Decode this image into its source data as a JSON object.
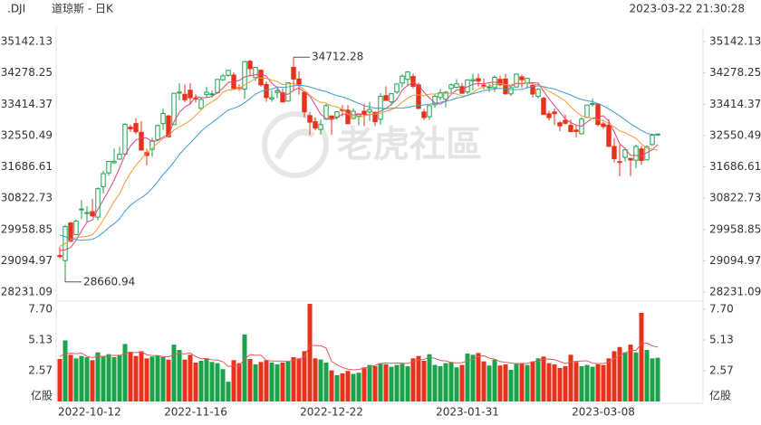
{
  "header": {
    "symbol": ".DJI",
    "name": "道琼斯 - 日K",
    "timestamp": "2023-03-22 21:30:28"
  },
  "watermark": "老虎社區",
  "chart_data": {
    "type": "candlestick",
    "up_color": "#1aa34a",
    "down_color": "#e8311a",
    "categories": [
      "2022-10-12",
      null,
      null,
      null,
      null,
      null,
      null,
      null,
      null,
      null,
      null,
      null,
      null,
      null,
      null,
      null,
      null,
      null,
      null,
      null,
      null,
      null,
      null,
      null,
      null,
      "2022-11-16",
      null,
      null,
      null,
      null,
      null,
      null,
      null,
      null,
      null,
      null,
      null,
      null,
      null,
      null,
      null,
      null,
      null,
      null,
      null,
      null,
      null,
      null,
      null,
      null,
      "2022-12-22",
      null,
      null,
      null,
      null,
      null,
      null,
      null,
      null,
      null,
      null,
      null,
      null,
      null,
      null,
      null,
      null,
      null,
      null,
      null,
      null,
      null,
      null,
      null,
      null,
      "2023-01-31",
      null,
      null,
      null,
      null,
      null,
      null,
      null,
      null,
      null,
      null,
      null,
      null,
      null,
      null,
      null,
      null,
      null,
      null,
      null,
      null,
      null,
      null,
      null,
      null,
      "2023-03-08",
      null,
      null,
      null,
      null,
      null,
      null,
      null,
      null,
      null,
      null
    ],
    "open": [
      29239,
      29100,
      30138,
      29818,
      30500,
      30400,
      30450,
      30300,
      31140,
      31520,
      31800,
      31900,
      32040,
      32780,
      32880,
      32640,
      32080,
      32170,
      32440,
      32880,
      33090,
      32850,
      33720,
      33690,
      33800,
      33580,
      33300,
      33680,
      33690,
      33730,
      34090,
      34210,
      34220,
      33870,
      33830,
      34600,
      34150,
      34350,
      33960,
      33560,
      33740,
      33730,
      33500,
      34430,
      34110,
      33740,
      33100,
      32930,
      32720,
      33000,
      33090,
      33060,
      33260,
      33250,
      33020,
      33090,
      33220,
      33200,
      33190,
      33000,
      33650,
      33480,
      33750,
      34000,
      34100,
      34180,
      33950,
      33200,
      33070,
      33400,
      33600,
      33550,
      33850,
      33880,
      33900,
      33750,
      34060,
      34120,
      33940,
      33880,
      33870,
      34100,
      34110,
      33700,
      33890,
      34170,
      33990,
      33930,
      33630,
      33580,
      33150,
      33200,
      32900,
      32970,
      32830,
      32700,
      32600,
      33050,
      33420,
      33420,
      32870,
      32840,
      32250,
      31830,
      31950,
      31920,
      31870,
      32180,
      31880,
      32300,
      32570
    ],
    "high": [
      29472,
      30090,
      30169,
      30235,
      30769,
      30600,
      30800,
      31120,
      31580,
      31850,
      32190,
      32240,
      32890,
      32850,
      33030,
      32950,
      32180,
      32490,
      32850,
      33290,
      33120,
      33730,
      33990,
      33960,
      33990,
      33690,
      33600,
      33900,
      33800,
      34110,
      34250,
      34360,
      34290,
      33960,
      34590,
      34640,
      34430,
      34380,
      34040,
      33790,
      33850,
      33850,
      34010,
      34712.28,
      34320,
      33770,
      33200,
      33050,
      32990,
      33420,
      33110,
      33230,
      33390,
      33390,
      33300,
      33160,
      33430,
      33480,
      33210,
      33720,
      33910,
      33710,
      33980,
      34240,
      34330,
      34260,
      34010,
      33290,
      33380,
      33700,
      33830,
      33780,
      33990,
      34110,
      34000,
      34100,
      34260,
      34260,
      34120,
      33980,
      34210,
      34200,
      34250,
      33910,
      34260,
      34230,
      34140,
      34010,
      33850,
      33620,
      33230,
      33300,
      32950,
      33120,
      32990,
      32850,
      33050,
      33400,
      33570,
      33430,
      32930,
      33000,
      32480,
      32300,
      32220,
      31920,
      32300,
      32270,
      32280,
      32600,
      32600
    ],
    "low": [
      29162,
      28660.94,
      29603,
      29818,
      30242,
      30175,
      30300,
      30207,
      30950,
      31440,
      31760,
      31880,
      31980,
      32650,
      32590,
      32140,
      31730,
      31960,
      32400,
      32700,
      32490,
      32850,
      33520,
      33470,
      33400,
      33460,
      33250,
      33590,
      33600,
      33700,
      34060,
      34180,
      33820,
      33780,
      33560,
      34190,
      34050,
      33900,
      33480,
      33480,
      33580,
      33470,
      33490,
      33800,
      33680,
      33050,
      32570,
      32690,
      32580,
      32990,
      32570,
      32990,
      33080,
      32870,
      33000,
      32830,
      32810,
      32950,
      32810,
      32850,
      33510,
      33370,
      33700,
      33880,
      33910,
      33850,
      33280,
      32980,
      32980,
      33320,
      33520,
      33330,
      33710,
      33850,
      33700,
      33690,
      33800,
      33900,
      33820,
      33750,
      33750,
      33910,
      33680,
      33640,
      33880,
      33870,
      33850,
      33600,
      33570,
      33120,
      32970,
      32850,
      32670,
      32850,
      32650,
      32500,
      32580,
      33040,
      33350,
      32800,
      32730,
      32230,
      31810,
      31430,
      31830,
      31430,
      31650,
      31740,
      31860,
      32280,
      32540
    ],
    "close": [
      29210,
      30038,
      29635,
      30186,
      30523,
      30424,
      30333,
      31082,
      31499,
      31837,
      31839,
      32033,
      32861,
      32733,
      32653,
      32148,
      32001,
      32403,
      32827,
      33160,
      32514,
      33716,
      33748,
      33537,
      33593,
      33554,
      33547,
      33746,
      33701,
      34098,
      34195,
      34347,
      33850,
      33853,
      34590,
      34395,
      34430,
      33947,
      33597,
      33598,
      33781,
      33477,
      34005,
      34108,
      33966,
      33203,
      32920,
      32758,
      32850,
      33377,
      33027,
      33204,
      33241,
      32876,
      33221,
      33147,
      33136,
      33270,
      32930,
      33631,
      33518,
      33704,
      33973,
      34190,
      34303,
      33910,
      33297,
      33045,
      33376,
      33630,
      33734,
      33744,
      33949,
      33978,
      33717,
      34086,
      34093,
      34054,
      33926,
      33891,
      34156,
      33949,
      33699,
      33869,
      34246,
      34089,
      34128,
      33697,
      33827,
      33130,
      33045,
      33154,
      32817,
      32889,
      32657,
      32662,
      33004,
      33391,
      33432,
      32856,
      32798,
      32254,
      31910,
      31820,
      32155,
      31875,
      32247,
      31862,
      32245,
      32561,
      32590
    ],
    "ma_lines": [
      {
        "color": "#e0457b",
        "values": [
          29375,
          29397,
          29465,
          29662,
          29918,
          30161,
          30220,
          30510,
          30772,
          31035,
          31318,
          31658,
          32014,
          32261,
          32424,
          32486,
          32479,
          32388,
          32406,
          32508,
          32581,
          32924,
          33193,
          33335,
          33422,
          33630,
          33596,
          33595,
          33628,
          33729,
          33857,
          34017,
          34038,
          34069,
          34167,
          34207,
          34224,
          34243,
          34192,
          33993,
          33871,
          33680,
          33692,
          33794,
          33867,
          33752,
          33640,
          33391,
          33139,
          33022,
          32986,
          33043,
          33140,
          33145,
          33114,
          33138,
          33124,
          33130,
          33141,
          33223,
          33297,
          33411,
          33551,
          33803,
          33938,
          34016,
          33935,
          33749,
          33586,
          33452,
          33416,
          33506,
          33687,
          33807,
          33824,
          33895,
          33965,
          33986,
          33975,
          34010,
          34024,
          33995,
          33924,
          33913,
          33984,
          33970,
          34006,
          34006,
          33997,
          33774,
          33565,
          33371,
          33195,
          33007,
          32912,
          32836,
          32806,
          32921,
          33029,
          33069,
          33096,
          32946,
          32650,
          32328,
          32187,
          32003,
          32001,
          31992,
          32077,
          32158,
          32301
        ]
      },
      {
        "color": "#f29b38",
        "values": [
          29491,
          29572,
          29663,
          29733,
          29753,
          29768,
          29809,
          29988,
          30217,
          30477,
          30740,
          30939,
          31262,
          31517,
          31730,
          31902,
          32069,
          32201,
          32334,
          32466,
          32534,
          32702,
          32791,
          32871,
          32965,
          33106,
          33260,
          33394,
          33482,
          33576,
          33744,
          33807,
          33817,
          33849,
          33948,
          34032,
          34121,
          34141,
          34131,
          34080,
          34039,
          33952,
          33968,
          33993,
          33930,
          33812,
          33660,
          33542,
          33467,
          33445,
          33369,
          33342,
          33266,
          33142,
          33068,
          33062,
          33084,
          33135,
          33143,
          33169,
          33218,
          33268,
          33341,
          33472,
          33581,
          33657,
          33673,
          33650,
          33695,
          33695,
          33716,
          33721,
          33718,
          33697,
          33638,
          33656,
          33736,
          33837,
          33891,
          33917,
          33960,
          33980,
          33955,
          33944,
          33997,
          33997,
          34001,
          33965,
          33955,
          33879,
          33768,
          33689,
          33601,
          33502,
          33343,
          33201,
          33089,
          33058,
          33018,
          32991,
          32966,
          32876,
          32786,
          32679,
          32628,
          32550,
          32474,
          32321,
          32203,
          32173,
          32152
        ]
      },
      {
        "color": "#3d9bd6",
        "values": [
          29808,
          29756,
          29708,
          29680,
          29661,
          29673,
          29686,
          29761,
          29873,
          30008,
          30116,
          30256,
          30463,
          30625,
          30742,
          30835,
          30939,
          31095,
          31276,
          31472,
          31637,
          31821,
          32027,
          32194,
          32348,
          32504,
          32665,
          32798,
          32908,
          33021,
          33139,
          33255,
          33304,
          33360,
          33457,
          33569,
          33691,
          33768,
          33807,
          33828,
          33892,
          33880,
          33893,
          33921,
          33939,
          33922,
          33891,
          33842,
          33799,
          33763,
          33704,
          33647,
          33617,
          33568,
          33499,
          33437,
          33372,
          33339,
          33305,
          33307,
          33294,
          33305,
          33304,
          33307,
          33325,
          33360,
          33379,
          33393,
          33419,
          33432,
          33467,
          33495,
          33530,
          33585,
          33610,
          33657,
          33705,
          33744,
          33793,
          33806,
          33838,
          33851,
          33837,
          33821,
          33818,
          33827,
          33869,
          33901,
          33923,
          33898,
          33864,
          33835,
          33778,
          33723,
          33670,
          33599,
          33545,
          33512,
          33487,
          33435,
          33367,
          33283,
          33194,
          33091,
          32986,
          32876,
          32782,
          32690,
          32611,
          32582,
          32559
        ]
      }
    ],
    "ylim": [
      28231.09,
      35142.13
    ],
    "yticks": [
      35142.13,
      34278.25,
      33414.37,
      32550.49,
      31686.61,
      30822.73,
      29958.85,
      29094.97,
      28231.09
    ],
    "volume": [
      3.55,
      5.1,
      3.9,
      3.6,
      3.8,
      3.7,
      3.45,
      4.1,
      3.75,
      3.95,
      3.7,
      3.9,
      4.8,
      4.15,
      3.8,
      4.2,
      3.6,
      3.75,
      3.85,
      3.7,
      3.5,
      4.75,
      4.3,
      3.5,
      3.9,
      3.25,
      3.4,
      3.6,
      3.3,
      3.2,
      2.7,
      1.65,
      3.45,
      3.2,
      5.6,
      3.55,
      3.1,
      3.3,
      3.45,
      3.25,
      3.1,
      3.25,
      3.35,
      3.7,
      3.6,
      4.2,
      8.15,
      3.6,
      3.5,
      3.25,
      2.6,
      2.2,
      2.35,
      2.55,
      2.3,
      2.4,
      2.85,
      3.05,
      2.95,
      3.2,
      3.1,
      2.9,
      3.05,
      3.15,
      2.95,
      3.6,
      3.8,
      3.4,
      3.95,
      3.05,
      2.95,
      3.2,
      3.3,
      2.85,
      3.05,
      4.0,
      3.9,
      4.05,
      3.35,
      3.0,
      3.5,
      3.0,
      3.1,
      2.65,
      3.2,
      3.15,
      3.05,
      3.35,
      3.6,
      3.75,
      3.2,
      3.1,
      2.8,
      2.95,
      3.9,
      3.3,
      2.95,
      3.05,
      2.9,
      3.1,
      3.05,
      3.6,
      4.2,
      4.55,
      4.1,
      4.75,
      4.1,
      7.4,
      4.3,
      3.6,
      3.65
    ],
    "volume_ma": {
      "color": "#e05a5a",
      "values": [
        3.75,
        4.01,
        4.03,
        3.99,
        4.04,
        3.76,
        3.67,
        3.77,
        3.76,
        3.81,
        3.86,
        3.82,
        4.03,
        4.07,
        4.09,
        4.15,
        3.91,
        3.83,
        3.84,
        3.74,
        3.72,
        3.92,
        4.01,
        3.97,
        4.05,
        3.75,
        3.57,
        3.59,
        3.47,
        3.46,
        3.32,
        2.93,
        2.96,
        2.96,
        3.54,
        3.92,
        3.85,
        3.87,
        3.44,
        3.38,
        3.38,
        3.37,
        3.35,
        3.44,
        3.54,
        3.73,
        4.69,
        4.67,
        4.65,
        4.46,
        3.35,
        3.07,
        2.84,
        2.7,
        2.64,
        2.68,
        2.78,
        2.88,
        3.01,
        3.17,
        3.22,
        3.19,
        3.21,
        3.2,
        3.17,
        3.31,
        3.46,
        3.51,
        3.71,
        3.6,
        3.43,
        3.39,
        3.26,
        3.22,
        3.24,
        3.4,
        3.52,
        3.76,
        3.82,
        3.62,
        3.54,
        3.33,
        3.28,
        3.21,
        3.15,
        3.18,
        3.17,
        3.31,
        3.39,
        3.51,
        3.54,
        3.49,
        3.33,
        3.17,
        3.31,
        3.35,
        3.38,
        3.4,
        3.2,
        3.16,
        3.18,
        3.29,
        3.55,
        3.84,
        4.05,
        4.28,
        4.26,
        4.83,
        4.87,
        4.64,
        4.55
      ]
    },
    "volume_ylim": [
      0,
      8.23
    ],
    "volume_ticks": [
      {
        "value": 7.7,
        "label": "7.70"
      },
      5.13,
      2.57
    ],
    "volume_unit": "亿股"
  }
}
